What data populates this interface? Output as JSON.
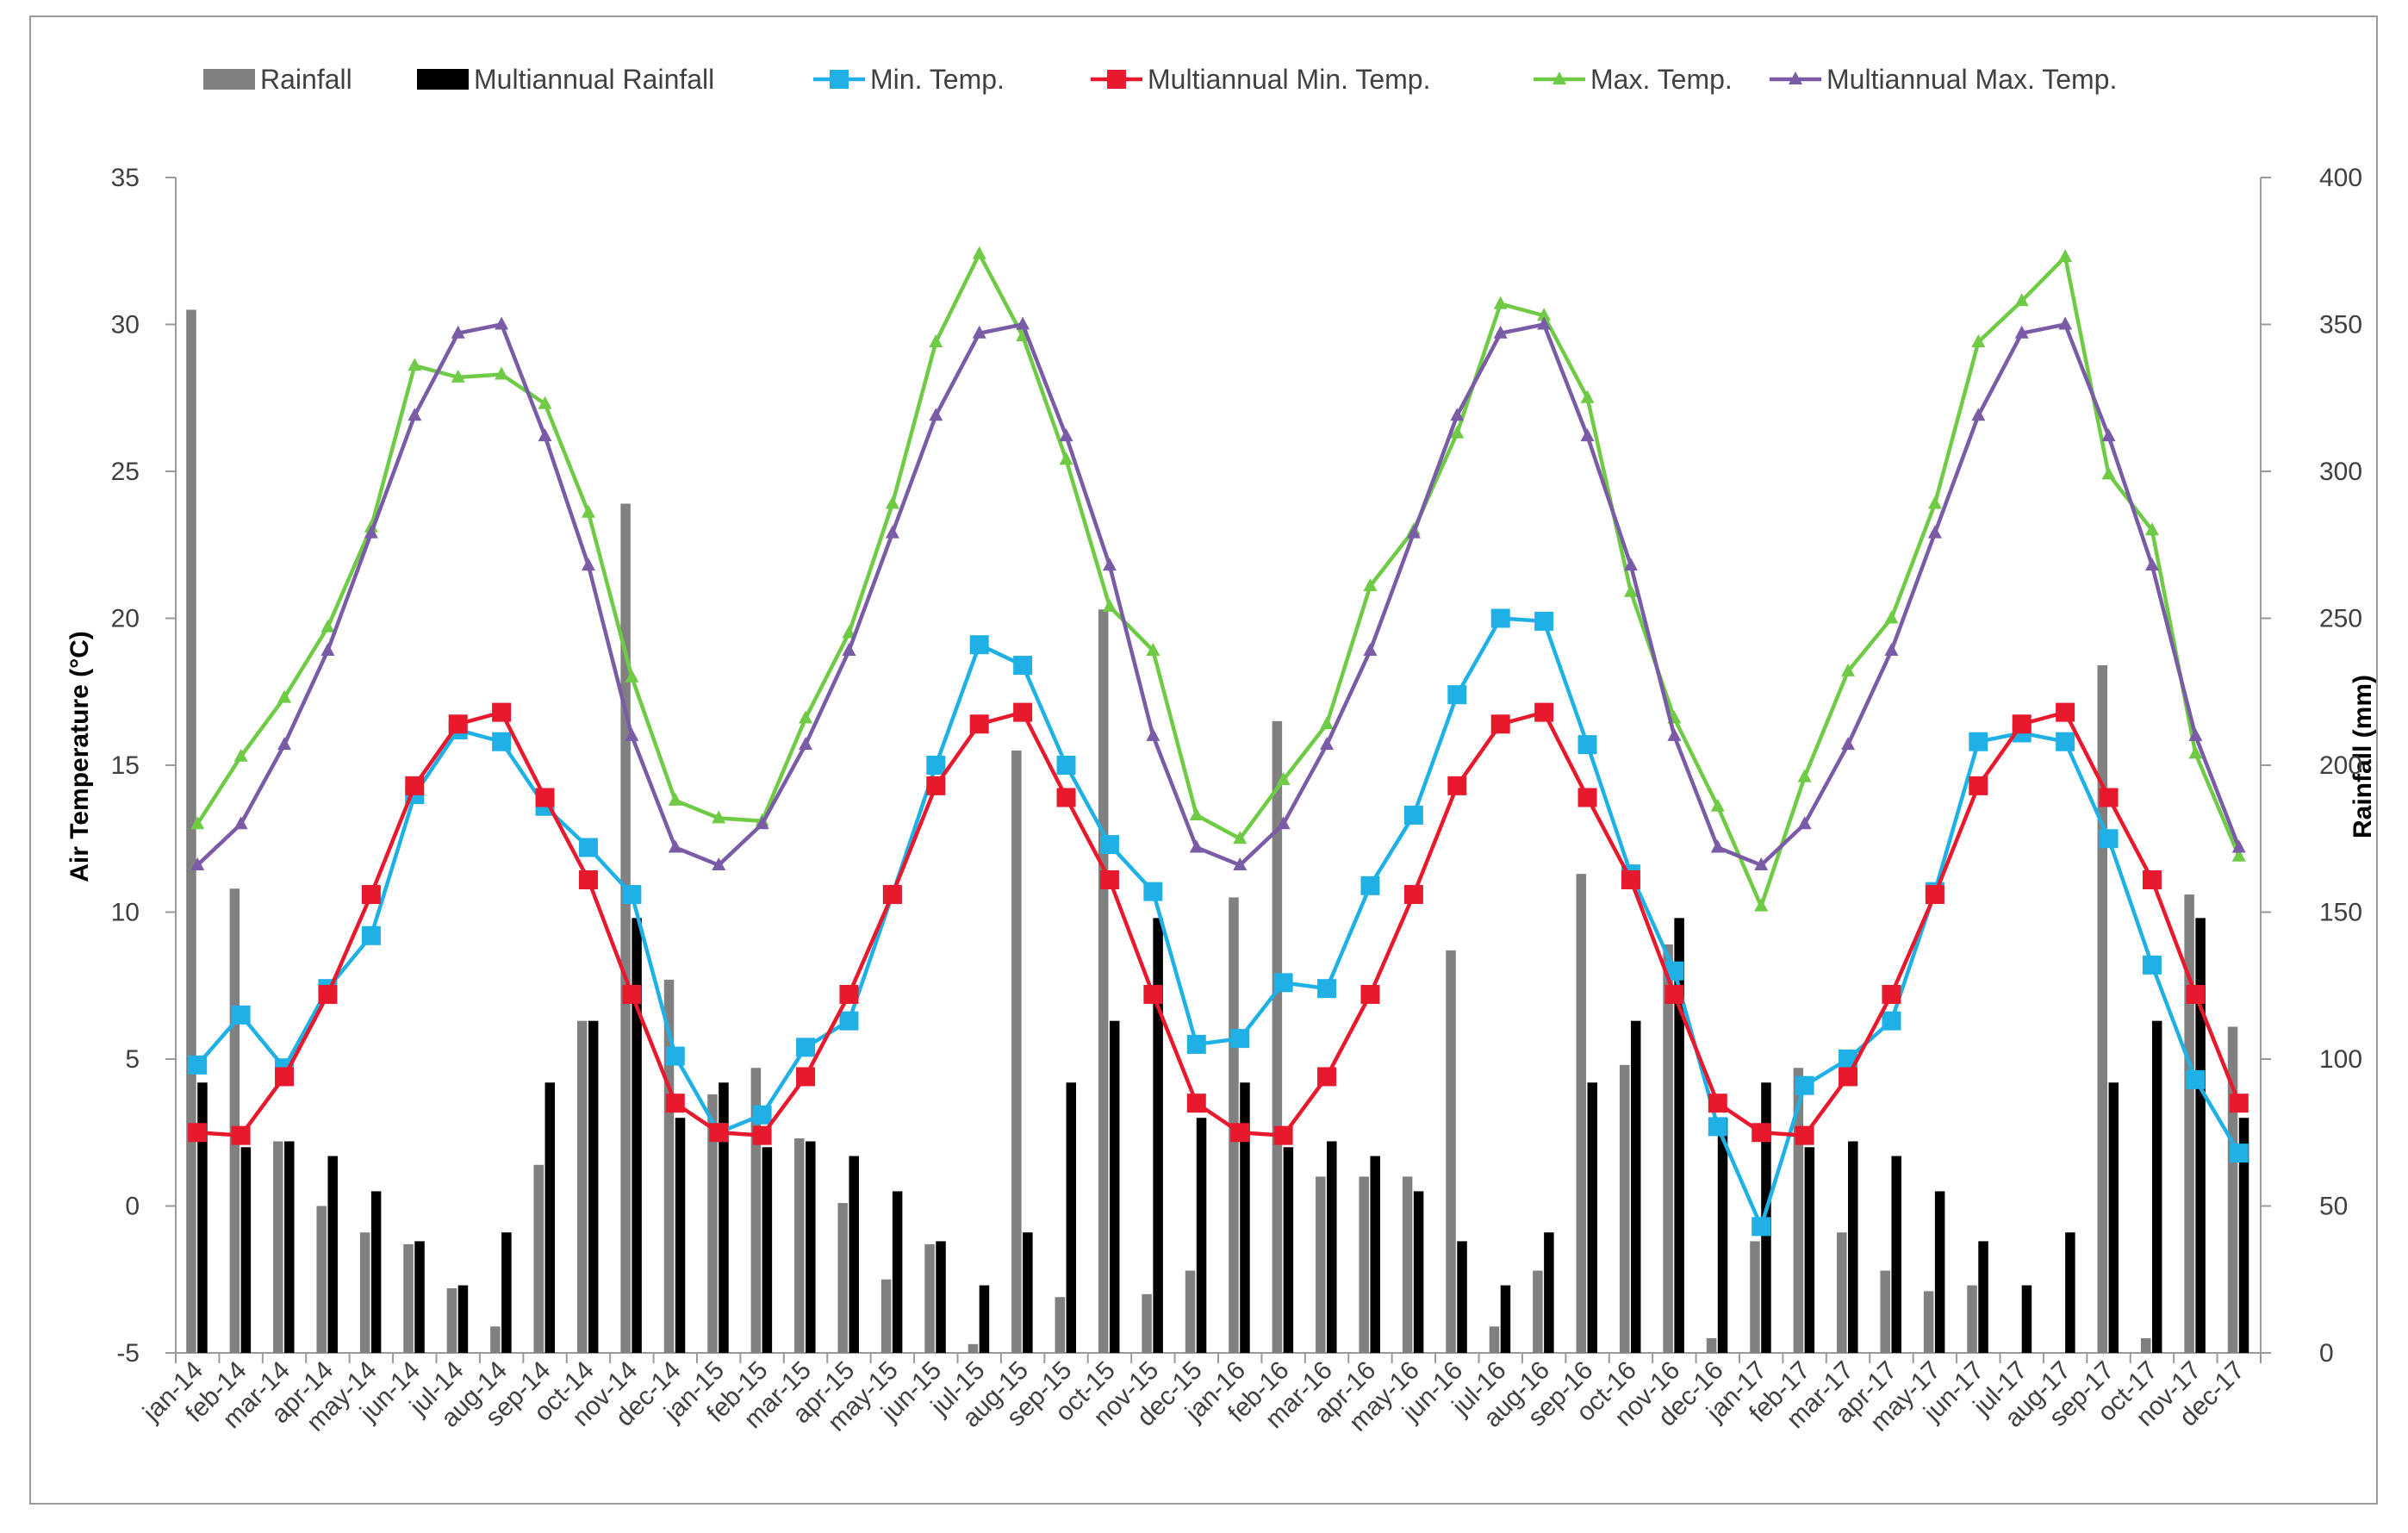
{
  "chart_data": {
    "type": "bar+line",
    "title": "",
    "categories": [
      "jan-14",
      "feb-14",
      "mar-14",
      "apr-14",
      "may-14",
      "jun-14",
      "jul-14",
      "aug-14",
      "sep-14",
      "oct-14",
      "nov-14",
      "dec-14",
      "jan-15",
      "feb-15",
      "mar-15",
      "apr-15",
      "may-15",
      "jun-15",
      "jul-15",
      "aug-15",
      "sep-15",
      "oct-15",
      "nov-15",
      "dec-15",
      "jan-16",
      "feb-16",
      "mar-16",
      "apr-16",
      "may-16",
      "jun-16",
      "jul-16",
      "aug-16",
      "sep-16",
      "oct-16",
      "nov-16",
      "dec-16",
      "jan-17",
      "feb-17",
      "mar-17",
      "apr-17",
      "may-17",
      "jun-17",
      "jul-17",
      "aug-17",
      "sep-17",
      "oct-17",
      "nov-17",
      "dec-17"
    ],
    "ylabel_left": "Air Temperature (°C)",
    "ylabel_right": "Rainfall (mm)",
    "ylim_left": [
      -5,
      35
    ],
    "yticks_left": [
      -5,
      0,
      5,
      10,
      15,
      20,
      25,
      30,
      35
    ],
    "ylim_right": [
      0,
      400
    ],
    "yticks_right": [
      0,
      50,
      100,
      150,
      200,
      250,
      300,
      350,
      400
    ],
    "legend_position": "top",
    "bar_series": [
      {
        "name": "Rainfall",
        "axis": "right",
        "color": "#808080",
        "values": [
          355,
          158,
          72,
          50,
          41,
          37,
          22,
          9,
          64,
          113,
          289,
          127,
          88,
          97,
          73,
          51,
          25,
          37,
          3,
          205,
          19,
          253,
          20,
          28,
          155,
          215,
          60,
          60,
          60,
          137,
          9,
          28,
          163,
          98,
          139,
          5,
          38,
          97,
          41,
          28,
          21,
          23,
          0,
          0,
          234,
          5,
          156,
          111
        ]
      },
      {
        "name": "Multiannual Rainfall",
        "axis": "right",
        "color": "#000000",
        "values": [
          92,
          70,
          72,
          67,
          55,
          38,
          23,
          41,
          92,
          113,
          148,
          80,
          92,
          70,
          72,
          67,
          55,
          38,
          23,
          41,
          92,
          113,
          148,
          80,
          92,
          70,
          72,
          67,
          55,
          38,
          23,
          41,
          92,
          113,
          148,
          80,
          92,
          70,
          72,
          67,
          55,
          38,
          23,
          41,
          92,
          113,
          148,
          80
        ]
      }
    ],
    "line_series": [
      {
        "name": "Min. Temp.",
        "axis": "left",
        "color": "#1FB1E6",
        "marker": "square",
        "values": [
          4.8,
          6.5,
          4.7,
          7.4,
          9.2,
          14.0,
          16.2,
          15.8,
          13.6,
          12.2,
          10.6,
          5.1,
          2.5,
          3.1,
          5.4,
          6.3,
          10.6,
          15.0,
          19.1,
          18.4,
          15.0,
          12.3,
          10.7,
          5.5,
          5.7,
          7.6,
          7.4,
          10.9,
          13.3,
          17.4,
          20.0,
          19.9,
          15.7,
          11.3,
          8.0,
          2.7,
          -0.7,
          4.1,
          5.0,
          6.3,
          10.7,
          15.8,
          16.1,
          15.8,
          12.5,
          8.2,
          4.3,
          1.8
        ]
      },
      {
        "name": "Multiannual Min. Temp.",
        "axis": "left",
        "color": "#E8192C",
        "marker": "square",
        "values": [
          2.5,
          2.4,
          4.4,
          7.2,
          10.6,
          14.3,
          16.4,
          16.8,
          13.9,
          11.1,
          7.2,
          3.5,
          2.5,
          2.4,
          4.4,
          7.2,
          10.6,
          14.3,
          16.4,
          16.8,
          13.9,
          11.1,
          7.2,
          3.5,
          2.5,
          2.4,
          4.4,
          7.2,
          10.6,
          14.3,
          16.4,
          16.8,
          13.9,
          11.1,
          7.2,
          3.5,
          2.5,
          2.4,
          4.4,
          7.2,
          10.6,
          14.3,
          16.4,
          16.8,
          13.9,
          11.1,
          7.2,
          3.5
        ]
      },
      {
        "name": "Max. Temp.",
        "axis": "left",
        "color": "#6FCB45",
        "marker": "triangle",
        "values": [
          13.0,
          15.3,
          17.3,
          19.7,
          23.1,
          28.6,
          28.2,
          28.3,
          27.3,
          23.6,
          18.0,
          13.8,
          13.2,
          13.1,
          16.6,
          19.5,
          23.9,
          29.4,
          32.4,
          29.6,
          25.4,
          20.4,
          18.9,
          13.3,
          12.5,
          14.5,
          16.4,
          21.1,
          23.0,
          26.3,
          30.7,
          30.3,
          27.5,
          20.9,
          16.6,
          13.6,
          10.2,
          14.6,
          18.2,
          20.0,
          23.9,
          29.4,
          30.8,
          32.3,
          24.9,
          23.0,
          15.4,
          11.9
        ]
      },
      {
        "name": "Multiannual Max. Temp.",
        "axis": "left",
        "color": "#7A5BA6",
        "marker": "triangle",
        "values": [
          11.6,
          13.0,
          15.7,
          18.9,
          22.9,
          26.9,
          29.7,
          30.0,
          26.2,
          21.8,
          16.0,
          12.2,
          11.6,
          13.0,
          15.7,
          18.9,
          22.9,
          26.9,
          29.7,
          30.0,
          26.2,
          21.8,
          16.0,
          12.2,
          11.6,
          13.0,
          15.7,
          18.9,
          22.9,
          26.9,
          29.7,
          30.0,
          26.2,
          21.8,
          16.0,
          12.2,
          11.6,
          13.0,
          15.7,
          18.9,
          22.9,
          26.9,
          29.7,
          30.0,
          26.2,
          21.8,
          16.0,
          12.2
        ]
      }
    ],
    "legend": [
      {
        "name": "Rainfall",
        "kind": "bar",
        "color": "#808080"
      },
      {
        "name": "Multiannual Rainfall",
        "kind": "bar",
        "color": "#000000"
      },
      {
        "name": "Min. Temp.",
        "kind": "line-square",
        "color": "#1FB1E6"
      },
      {
        "name": "Multiannual Min. Temp.",
        "kind": "line-square",
        "color": "#E8192C"
      },
      {
        "name": "Max. Temp.",
        "kind": "line-triangle",
        "color": "#6FCB45"
      },
      {
        "name": "Multiannual Max. Temp.",
        "kind": "line-triangle",
        "color": "#7A5BA6"
      }
    ],
    "axis_color": "#9a9a9a",
    "text_color": "#404040"
  }
}
